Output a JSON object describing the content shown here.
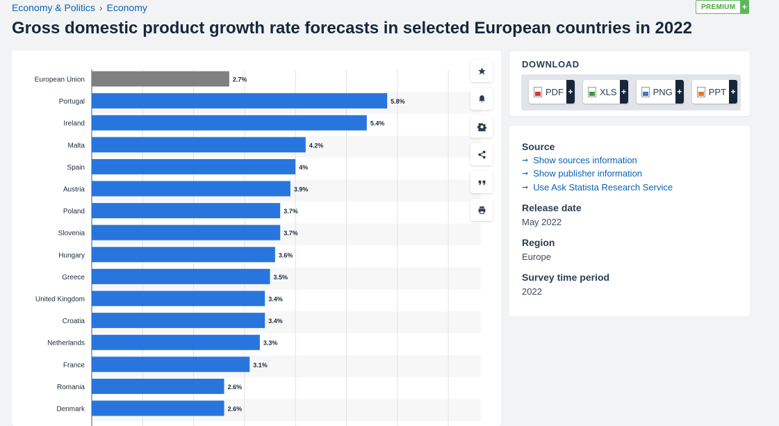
{
  "breadcrumb": {
    "item1": "Economy & Politics",
    "separator": "›",
    "item2": "Economy"
  },
  "premium": {
    "label": "PREMIUM",
    "plus": "+"
  },
  "page_title": "Gross domestic product growth rate forecasts in selected European countries in 2022",
  "download": {
    "heading": "DOWNLOAD",
    "buttons": [
      {
        "label": "PDF",
        "color": "#d9352b"
      },
      {
        "label": "XLS",
        "color": "#3b9a3b"
      },
      {
        "label": "PNG",
        "color": "#3a7bc8"
      },
      {
        "label": "PPT",
        "color": "#e07b2a"
      }
    ],
    "plus": "+"
  },
  "info": {
    "source_heading": "Source",
    "links": [
      "Show sources information",
      "Show publisher information",
      "Use Ask Statista Research Service"
    ],
    "release_heading": "Release date",
    "release_value": "May 2022",
    "region_heading": "Region",
    "region_value": "Europe",
    "survey_heading": "Survey time period",
    "survey_value": "2022"
  },
  "tools": [
    "star-icon",
    "bell-icon",
    "gear-icon",
    "share-icon",
    "quote-icon",
    "print-icon"
  ],
  "colors": {
    "bar": "#2876dd",
    "highlight": "#808080",
    "label": "#1c2a3a"
  },
  "chart_data": {
    "type": "bar",
    "orientation": "horizontal",
    "categories": [
      "European Union",
      "Portugal",
      "Ireland",
      "Malta",
      "Spain",
      "Austria",
      "Poland",
      "Slovenia",
      "Hungary",
      "Greece",
      "United Kingdom",
      "Croatia",
      "Netherlands",
      "France",
      "Romania",
      "Denmark"
    ],
    "values": [
      2.7,
      5.8,
      5.4,
      4.2,
      4,
      3.9,
      3.7,
      3.7,
      3.6,
      3.5,
      3.4,
      3.4,
      3.3,
      3.1,
      2.6,
      2.6
    ],
    "value_labels": [
      "2.7%",
      "5.8%",
      "5.4%",
      "4.2%",
      "4%",
      "3.9%",
      "3.7%",
      "3.7%",
      "3.6%",
      "3.5%",
      "3.4%",
      "3.4%",
      "3.3%",
      "3.1%",
      "2.6%",
      "2.6%"
    ],
    "highlight_index": 0,
    "xlim": [
      0,
      7
    ],
    "grid": true
  }
}
